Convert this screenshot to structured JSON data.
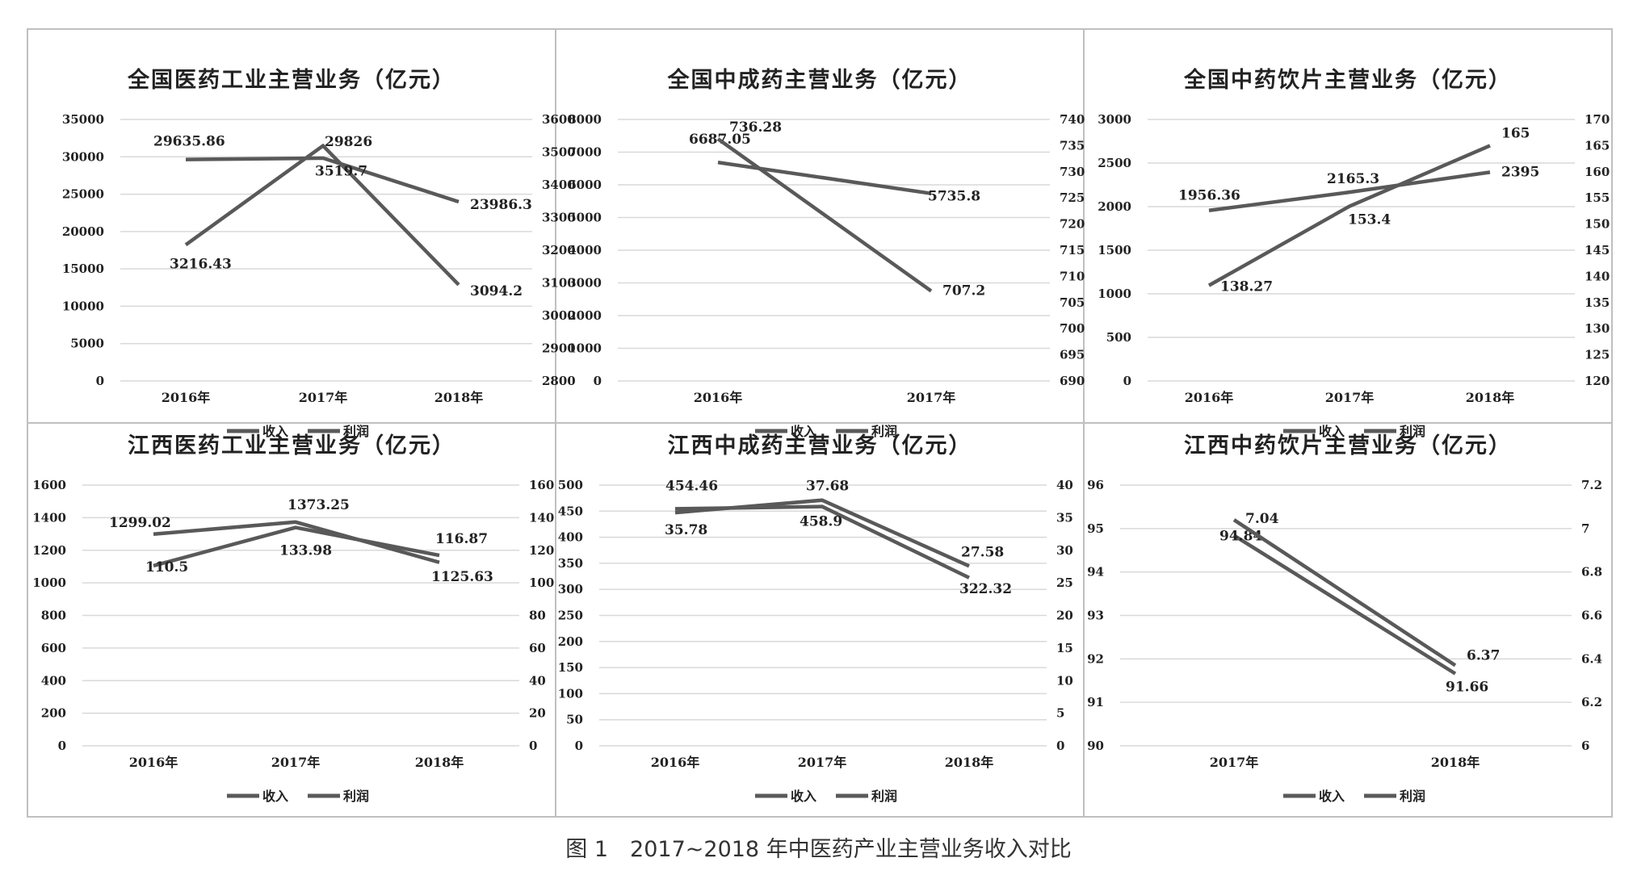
{
  "caption": "图 1　2017~2018 年中医药产业主营业务收入对比",
  "colors": {
    "line": "#595959",
    "grid": "#d9d9d9",
    "border": "#bfbfbf",
    "text": "#222222"
  },
  "legend": [
    "收入",
    "利润"
  ],
  "chart_data": [
    {
      "type": "line",
      "title": "全国医药工业主营业务（亿元）",
      "categories": [
        "2016年",
        "2017年",
        "2018年"
      ],
      "left_axis": {
        "ticks": [
          "0",
          "5000",
          "10000",
          "15000",
          "20000",
          "25000",
          "30000",
          "35000"
        ],
        "min": 0,
        "max": 35000
      },
      "right_axis": {
        "ticks": [
          "2800",
          "2900",
          "3000",
          "3100",
          "3200",
          "3300",
          "3400",
          "3500",
          "3600"
        ],
        "min": 2800,
        "max": 3600
      },
      "series": [
        {
          "name": "收入",
          "axis": "left",
          "values": [
            29635.86,
            29826,
            23986.3
          ],
          "labels": [
            "29635.86",
            "29826",
            "23986.3"
          ]
        },
        {
          "name": "利润",
          "axis": "right",
          "values": [
            3216.43,
            3519.7,
            3094.2
          ],
          "labels": [
            "3216.43",
            "3519.7",
            "3094.2"
          ]
        }
      ],
      "legend_position": "bottom",
      "grid": true
    },
    {
      "type": "line",
      "title": "全国中成药主营业务（亿元）",
      "categories": [
        "2016年",
        "2017年"
      ],
      "left_axis": {
        "ticks": [
          "0",
          "1000",
          "2000",
          "3000",
          "4000",
          "5000",
          "6000",
          "7000",
          "8000"
        ],
        "min": 0,
        "max": 8000
      },
      "right_axis": {
        "ticks": [
          "690",
          "695",
          "700",
          "705",
          "710",
          "715",
          "720",
          "725",
          "730",
          "735",
          "740"
        ],
        "min": 690,
        "max": 740
      },
      "series": [
        {
          "name": "收入",
          "axis": "left",
          "values": [
            6687.05,
            5735.8
          ],
          "labels": [
            "6687.05",
            "5735.8"
          ]
        },
        {
          "name": "利润",
          "axis": "right",
          "values": [
            736.28,
            707.2
          ],
          "labels": [
            "736.28",
            "707.2"
          ]
        }
      ],
      "legend_position": "bottom",
      "grid": true
    },
    {
      "type": "line",
      "title": "全国中药饮片主营业务（亿元）",
      "categories": [
        "2016年",
        "2017年",
        "2018年"
      ],
      "left_axis": {
        "ticks": [
          "0",
          "500",
          "1000",
          "1500",
          "2000",
          "2500",
          "3000"
        ],
        "min": 0,
        "max": 3000
      },
      "right_axis": {
        "ticks": [
          "120",
          "125",
          "130",
          "135",
          "140",
          "145",
          "150",
          "155",
          "160",
          "165",
          "170"
        ],
        "min": 120,
        "max": 170
      },
      "series": [
        {
          "name": "收入",
          "axis": "left",
          "values": [
            1956.36,
            2165.3,
            2395
          ],
          "labels": [
            "1956.36",
            "2165.3",
            "2395"
          ]
        },
        {
          "name": "利润",
          "axis": "right",
          "values": [
            138.27,
            153.4,
            165
          ],
          "labels": [
            "138.27",
            "153.4",
            "165"
          ]
        }
      ],
      "legend_position": "bottom",
      "grid": true
    },
    {
      "type": "line",
      "title": "江西医药工业主营业务（亿元）",
      "categories": [
        "2016年",
        "2017年",
        "2018年"
      ],
      "left_axis": {
        "ticks": [
          "0",
          "200",
          "400",
          "600",
          "800",
          "1000",
          "1200",
          "1400",
          "1600"
        ],
        "min": 0,
        "max": 1600
      },
      "right_axis": {
        "ticks": [
          "0",
          "20",
          "40",
          "60",
          "80",
          "100",
          "120",
          "140",
          "160"
        ],
        "min": 0,
        "max": 160
      },
      "series": [
        {
          "name": "收入",
          "axis": "left",
          "values": [
            1299.02,
            1373.25,
            1125.63
          ],
          "labels": [
            "1299.02",
            "1373.25",
            "1125.63"
          ]
        },
        {
          "name": "利润",
          "axis": "right",
          "values": [
            110.5,
            133.98,
            116.87
          ],
          "labels": [
            "110.5",
            "133.98",
            "116.87"
          ]
        }
      ],
      "legend_position": "bottom",
      "grid": true
    },
    {
      "type": "line",
      "title": "江西中成药主营业务（亿元）",
      "categories": [
        "2016年",
        "2017年",
        "2018年"
      ],
      "left_axis": {
        "ticks": [
          "0",
          "50",
          "100",
          "150",
          "200",
          "250",
          "300",
          "350",
          "400",
          "450",
          "500"
        ],
        "min": 0,
        "max": 500
      },
      "right_axis": {
        "ticks": [
          "0",
          "5",
          "10",
          "15",
          "20",
          "25",
          "30",
          "35",
          "40"
        ],
        "min": 0,
        "max": 40
      },
      "series": [
        {
          "name": "收入",
          "axis": "left",
          "values": [
            454.46,
            458.9,
            322.32
          ],
          "labels": [
            "454.46",
            "458.9",
            "322.32"
          ]
        },
        {
          "name": "利润",
          "axis": "right",
          "values": [
            35.78,
            37.68,
            27.58
          ],
          "labels": [
            "35.78",
            "37.68",
            "27.58"
          ]
        }
      ],
      "legend_position": "bottom",
      "grid": true
    },
    {
      "type": "line",
      "title": "江西中药饮片主营业务（亿元）",
      "categories": [
        "2017年",
        "2018年"
      ],
      "left_axis": {
        "ticks": [
          "90",
          "91",
          "92",
          "93",
          "94",
          "95",
          "96"
        ],
        "min": 90,
        "max": 96
      },
      "right_axis": {
        "ticks": [
          "6",
          "6.2",
          "6.4",
          "6.6",
          "6.8",
          "7",
          "7.2"
        ],
        "min": 6,
        "max": 7.2
      },
      "series": [
        {
          "name": "收入",
          "axis": "left",
          "values": [
            94.84,
            91.66
          ],
          "labels": [
            "94.84",
            "91.66"
          ]
        },
        {
          "name": "利润",
          "axis": "right",
          "values": [
            7.04,
            6.37
          ],
          "labels": [
            "7.04",
            "6.37"
          ]
        }
      ],
      "legend_position": "bottom",
      "grid": true
    }
  ]
}
